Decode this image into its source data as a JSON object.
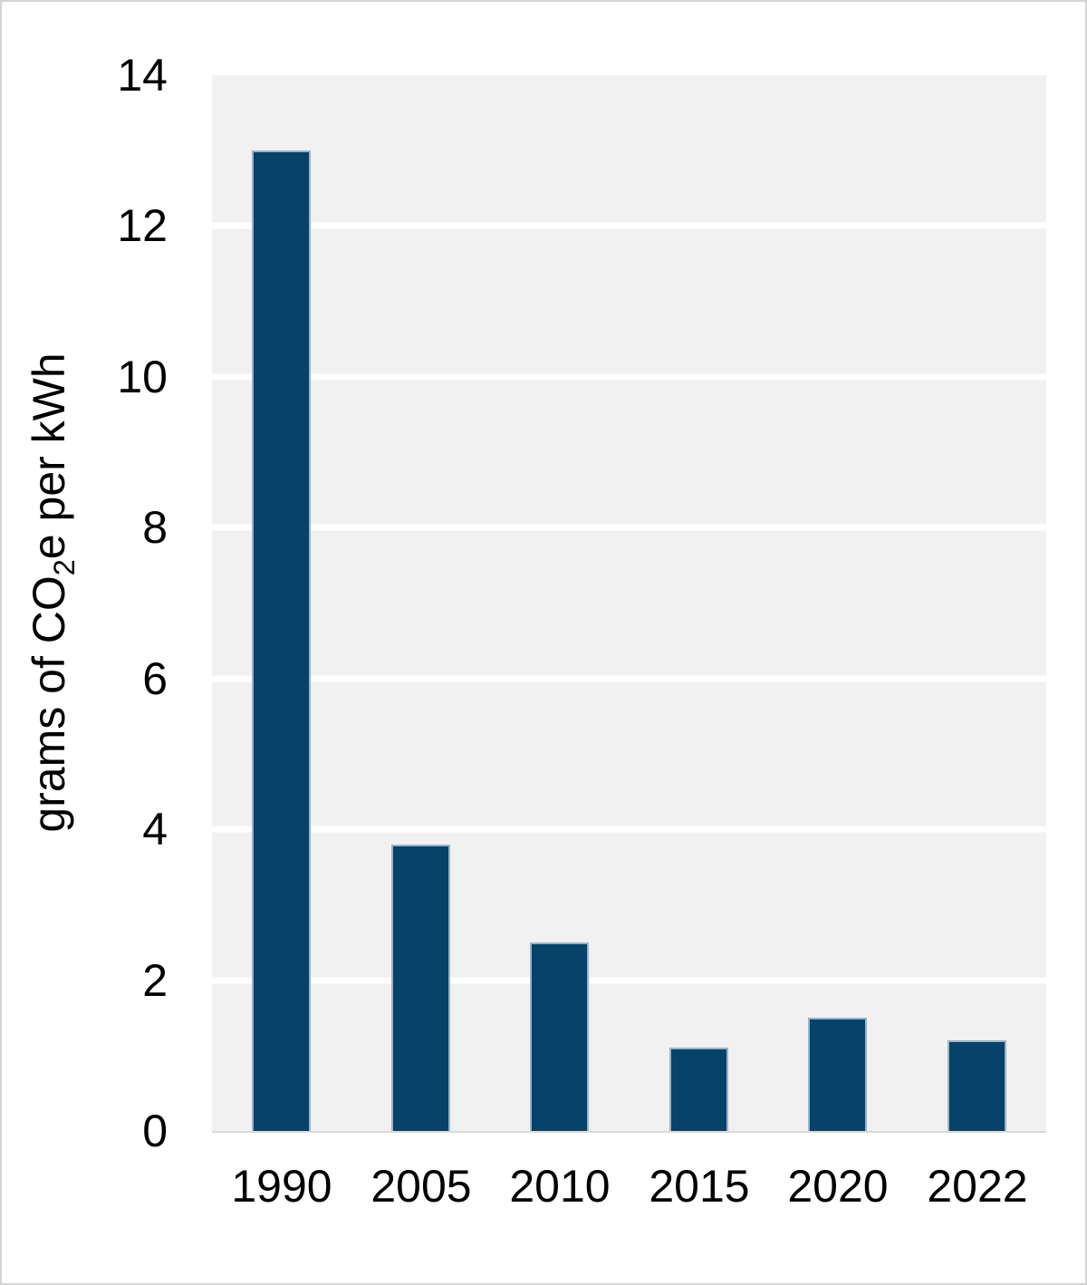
{
  "chart_data": {
    "type": "bar",
    "title": "",
    "categories": [
      "1990",
      "2005",
      "2010",
      "2015",
      "2020",
      "2022"
    ],
    "values": [
      13.0,
      3.8,
      2.5,
      1.1,
      1.5,
      1.2
    ],
    "series": [
      {
        "name": "grams of CO2e per kWh",
        "values": [
          13.0,
          3.8,
          2.5,
          1.1,
          1.5,
          1.2
        ]
      }
    ],
    "xlabel": "",
    "ylabel": "grams of CO₂e per kWh",
    "ylabel_parts": {
      "prefix": "grams of CO",
      "sub": "2",
      "suffix": "e per kWh"
    },
    "ylim": [
      0,
      14
    ],
    "yticks": [
      0,
      2,
      4,
      6,
      8,
      10,
      12,
      14
    ],
    "grid": "horizontal-white-on-gray",
    "legend": "none",
    "colors": {
      "bar": "#07426b",
      "bar_border": "#9db2c0",
      "plot_background": "#f1f1f1",
      "gridline": "#ffffff",
      "axis_line": "#d9d9d9",
      "text": "#000000",
      "figure_border": "#d4d4d4"
    }
  }
}
